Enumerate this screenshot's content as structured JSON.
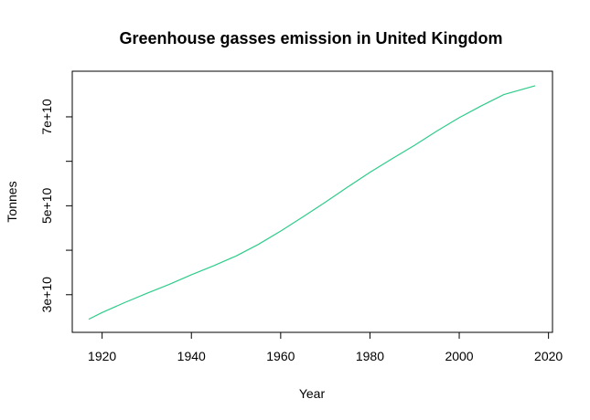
{
  "chart_data": {
    "type": "line",
    "title": "Greenhouse gasses emission in United Kingdom",
    "xlabel": "Year",
    "ylabel": "Tonnes",
    "xlim": [
      1917,
      2017
    ],
    "ylim": [
      24000000000,
      78000000000
    ],
    "x_ticks": [
      1920,
      1940,
      1960,
      1980,
      2000,
      2020
    ],
    "y_ticks": [
      {
        "value": 30000000000,
        "label": "3e+10"
      },
      {
        "value": 40000000000,
        "label": ""
      },
      {
        "value": 50000000000,
        "label": "5e+10"
      },
      {
        "value": 60000000000,
        "label": ""
      },
      {
        "value": 70000000000,
        "label": "7e+10"
      }
    ],
    "grid": false,
    "line_color": "#2ecc8a",
    "series": [
      {
        "x": [
          1917,
          1920,
          1925,
          1930,
          1935,
          1940,
          1945,
          1950,
          1955,
          1960,
          1965,
          1970,
          1975,
          1980,
          1985,
          1990,
          1995,
          2000,
          2005,
          2010,
          2017
        ],
        "y": [
          24500000000,
          26000000000,
          28200000000,
          30300000000,
          32300000000,
          34500000000,
          36500000000,
          38700000000,
          41300000000,
          44300000000,
          47500000000,
          50800000000,
          54200000000,
          57500000000,
          60600000000,
          63600000000,
          66800000000,
          69800000000,
          72500000000,
          75000000000,
          77000000000
        ]
      }
    ]
  }
}
